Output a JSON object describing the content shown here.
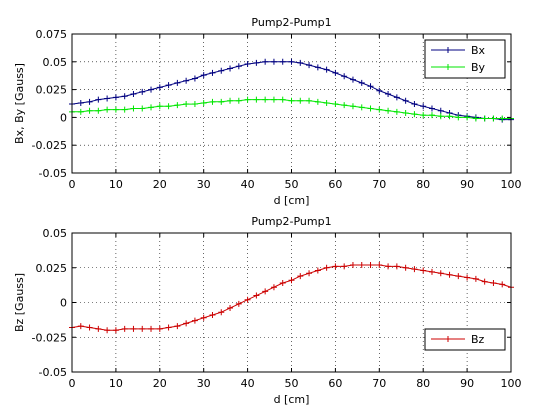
{
  "chart_data": [
    {
      "type": "line",
      "title": "Pump2-Pump1",
      "xlabel": "d [cm]",
      "ylabel": "Bx, By [Gauss]",
      "xlim": [
        0,
        100
      ],
      "ylim": [
        -0.05,
        0.075
      ],
      "xticks": [
        0,
        10,
        20,
        30,
        40,
        50,
        60,
        70,
        80,
        90,
        100
      ],
      "yticks": [
        -0.05,
        -0.025,
        0,
        0.025,
        0.05,
        0.075
      ],
      "ytick_labels": [
        "-0.05",
        "-0.025",
        "0",
        "0.025",
        "0.05",
        "0.075"
      ],
      "grid": true,
      "legend": "top-right",
      "x": [
        0,
        2,
        4,
        6,
        8,
        10,
        12,
        14,
        16,
        18,
        20,
        22,
        24,
        26,
        28,
        30,
        32,
        34,
        36,
        38,
        40,
        42,
        44,
        46,
        48,
        50,
        52,
        54,
        56,
        58,
        60,
        62,
        64,
        66,
        68,
        70,
        72,
        74,
        76,
        78,
        80,
        82,
        84,
        86,
        88,
        90,
        92,
        94,
        96,
        98,
        100
      ],
      "series": [
        {
          "name": "Bx",
          "color": "#000080",
          "values": [
            0.012,
            0.013,
            0.014,
            0.016,
            0.017,
            0.018,
            0.019,
            0.021,
            0.023,
            0.025,
            0.027,
            0.029,
            0.031,
            0.033,
            0.035,
            0.038,
            0.04,
            0.042,
            0.044,
            0.046,
            0.048,
            0.049,
            0.05,
            0.05,
            0.05,
            0.05,
            0.049,
            0.047,
            0.045,
            0.043,
            0.04,
            0.037,
            0.034,
            0.031,
            0.028,
            0.024,
            0.021,
            0.018,
            0.015,
            0.012,
            0.01,
            0.008,
            0.006,
            0.004,
            0.002,
            0.001,
            0.0,
            -0.001,
            -0.001,
            -0.002,
            -0.002
          ]
        },
        {
          "name": "By",
          "color": "#00e600",
          "values": [
            0.005,
            0.005,
            0.006,
            0.006,
            0.007,
            0.007,
            0.007,
            0.008,
            0.008,
            0.009,
            0.01,
            0.01,
            0.011,
            0.012,
            0.012,
            0.013,
            0.014,
            0.014,
            0.015,
            0.015,
            0.016,
            0.016,
            0.016,
            0.016,
            0.016,
            0.015,
            0.015,
            0.015,
            0.014,
            0.013,
            0.012,
            0.011,
            0.01,
            0.009,
            0.008,
            0.007,
            0.006,
            0.005,
            0.004,
            0.003,
            0.002,
            0.002,
            0.001,
            0.001,
            0.0,
            0.0,
            -0.001,
            -0.001,
            -0.001,
            -0.001,
            -0.001
          ]
        }
      ]
    },
    {
      "type": "line",
      "title": "Pump2-Pump1",
      "xlabel": "d [cm]",
      "ylabel": "Bz [Gauss]",
      "xlim": [
        0,
        100
      ],
      "ylim": [
        -0.05,
        0.05
      ],
      "xticks": [
        0,
        10,
        20,
        30,
        40,
        50,
        60,
        70,
        80,
        90,
        100
      ],
      "yticks": [
        -0.05,
        -0.025,
        0,
        0.025,
        0.05
      ],
      "ytick_labels": [
        "-0.05",
        "-0.025",
        "0",
        "0.025",
        "0.05"
      ],
      "grid": true,
      "legend": "bottom-right",
      "x": [
        0,
        2,
        4,
        6,
        8,
        10,
        12,
        14,
        16,
        18,
        20,
        22,
        24,
        26,
        28,
        30,
        32,
        34,
        36,
        38,
        40,
        42,
        44,
        46,
        48,
        50,
        52,
        54,
        56,
        58,
        60,
        62,
        64,
        66,
        68,
        70,
        72,
        74,
        76,
        78,
        80,
        82,
        84,
        86,
        88,
        90,
        92,
        94,
        96,
        98,
        100
      ],
      "series": [
        {
          "name": "Bz",
          "color": "#cc0000",
          "values": [
            -0.018,
            -0.017,
            -0.018,
            -0.019,
            -0.02,
            -0.02,
            -0.019,
            -0.019,
            -0.019,
            -0.019,
            -0.019,
            -0.018,
            -0.017,
            -0.015,
            -0.013,
            -0.011,
            -0.009,
            -0.007,
            -0.004,
            -0.001,
            0.002,
            0.005,
            0.008,
            0.011,
            0.014,
            0.016,
            0.019,
            0.021,
            0.023,
            0.025,
            0.026,
            0.026,
            0.027,
            0.027,
            0.027,
            0.027,
            0.026,
            0.026,
            0.025,
            0.024,
            0.023,
            0.022,
            0.021,
            0.02,
            0.019,
            0.018,
            0.017,
            0.015,
            0.014,
            0.013,
            0.011
          ]
        }
      ]
    }
  ]
}
